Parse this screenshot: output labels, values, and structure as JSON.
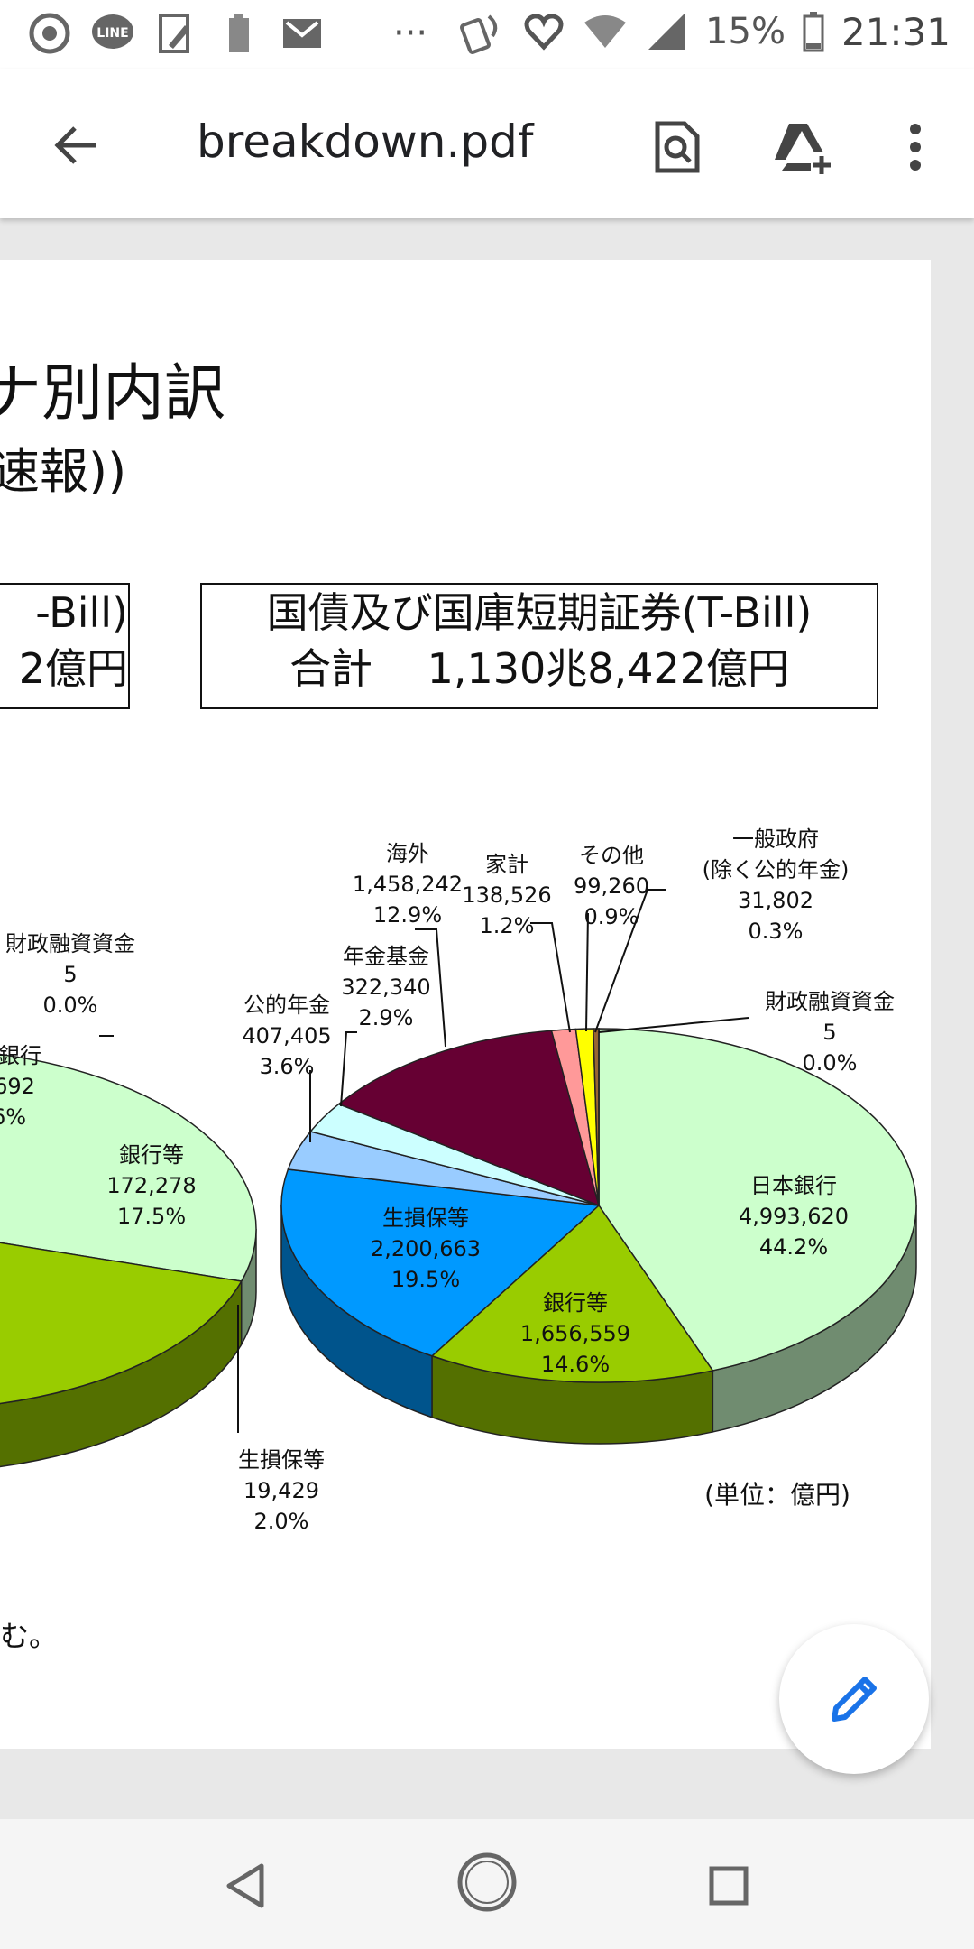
{
  "status_bar": {
    "icons_left": [
      "chrome-icon",
      "line-icon",
      "edit-notification-icon",
      "battery-saver-icon",
      "gmail-icon",
      "more-notifications-icon"
    ],
    "icons_right": [
      "nfc-icon",
      "heart-health-icon",
      "wifi-icon",
      "signal-icon"
    ],
    "more_dots": "···",
    "battery": "15%",
    "time": "21:31"
  },
  "app_bar": {
    "title": "breakdown.pdf"
  },
  "document": {
    "title": "別内訳",
    "title_prefix_fragment": "ナ",
    "subtitle": "速報))",
    "box_left_line1": "-Bill)",
    "box_left_line2": "2億円",
    "box_right_line1": "国債及び国庫短期証券(T-Bill)",
    "box_right_line2": "合計　  1,130兆8,422億円",
    "footnote": "む。",
    "unit_label": "(単位：億円)"
  },
  "chart_data": [
    {
      "type": "pie",
      "title": "",
      "slices": [
        {
          "label": "日本銀行",
          "value": 4993620,
          "percent": "44.2%",
          "color": "#ccffcc"
        },
        {
          "label": "銀行等",
          "value": 1656559,
          "percent": "14.6%",
          "color": "#99cc00"
        },
        {
          "label": "生損保等",
          "value": 2200663,
          "percent": "19.5%",
          "color": "#0099ff"
        },
        {
          "label": "公的年金",
          "value": 407405,
          "percent": "3.6%",
          "color": "#99ccff"
        },
        {
          "label": "年金基金",
          "value": 322340,
          "percent": "2.9%",
          "color": "#ccffff"
        },
        {
          "label": "海外",
          "value": 1458242,
          "percent": "12.9%",
          "color": "#660033"
        },
        {
          "label": "家計",
          "value": 138526,
          "percent": "1.2%",
          "color": "#ff9999"
        },
        {
          "label": "その他",
          "value": 99260,
          "percent": "0.9%",
          "color": "#ffff00"
        },
        {
          "label": "一般政府",
          "sublabel": "(除く公的年金)",
          "value": 31802,
          "percent": "0.3%",
          "color": "#996633"
        },
        {
          "label": "財政融資資金",
          "value": 5,
          "percent": "0.0%",
          "color": "#333333"
        }
      ]
    },
    {
      "type": "pie",
      "title": "",
      "partial": true,
      "slices": [
        {
          "label": "財政融資資金",
          "value": 5,
          "percent": "0.0%",
          "color": "#333333"
        },
        {
          "label": "銀行",
          "value_fragment": "692",
          "percent_fragment": "6%",
          "color": "#ccffcc"
        },
        {
          "label": "銀行等",
          "value": 172278,
          "percent": "17.5%",
          "color": "#99cc00"
        },
        {
          "label": "生損保等",
          "value": 19429,
          "percent": "2.0%",
          "color": "#0099ff"
        },
        {
          "label": "",
          "color": "#660033"
        }
      ]
    }
  ],
  "labels": {
    "r_kaigai_name": "海外",
    "r_kaigai_val": "1,458,242",
    "r_kaigai_pct": "12.9%",
    "r_kakei_name": "家計",
    "r_kakei_val": "138,526",
    "r_kakei_pct": "1.2%",
    "r_sonota_name": "その他",
    "r_sonota_val": "99,260",
    "r_sonota_pct": "0.9%",
    "r_ippan_name": "一般政府",
    "r_ippan_sub": "(除く公的年金)",
    "r_ippan_val": "31,802",
    "r_ippan_pct": "0.3%",
    "r_zaisei_name": "財政融資資金",
    "r_zaisei_val": "5",
    "r_zaisei_pct": "0.0%",
    "r_nenkin_name": "年金基金",
    "r_nenkin_val": "322,340",
    "r_nenkin_pct": "2.9%",
    "r_koteki_name": "公的年金",
    "r_koteki_val": "407,405",
    "r_koteki_pct": "3.6%",
    "r_nichigin_name": "日本銀行",
    "r_nichigin_val": "4,993,620",
    "r_nichigin_pct": "44.2%",
    "r_seison_name": "生損保等",
    "r_seison_val": "2,200,663",
    "r_seison_pct": "19.5%",
    "r_ginko_name": "銀行等",
    "r_ginko_val": "1,656,559",
    "r_ginko_pct": "14.6%",
    "l_zaisei_name": "財政融資資金",
    "l_zaisei_val": "5",
    "l_zaisei_pct": "0.0%",
    "l_ginko_frag_name": "銀行",
    "l_ginko_frag_val": "692",
    "l_ginko_frag_pct": "6%",
    "l_ginko_name": "銀行等",
    "l_ginko_val": "172,278",
    "l_ginko_pct": "17.5%",
    "l_seison_name": "生損保等",
    "l_seison_val": "19,429",
    "l_seison_pct": "2.0%"
  },
  "colors": {
    "accent": "#1a73e8",
    "burgundy": "#660033",
    "lime": "#99cc00",
    "blue": "#0099ff",
    "mint": "#ccffcc"
  }
}
